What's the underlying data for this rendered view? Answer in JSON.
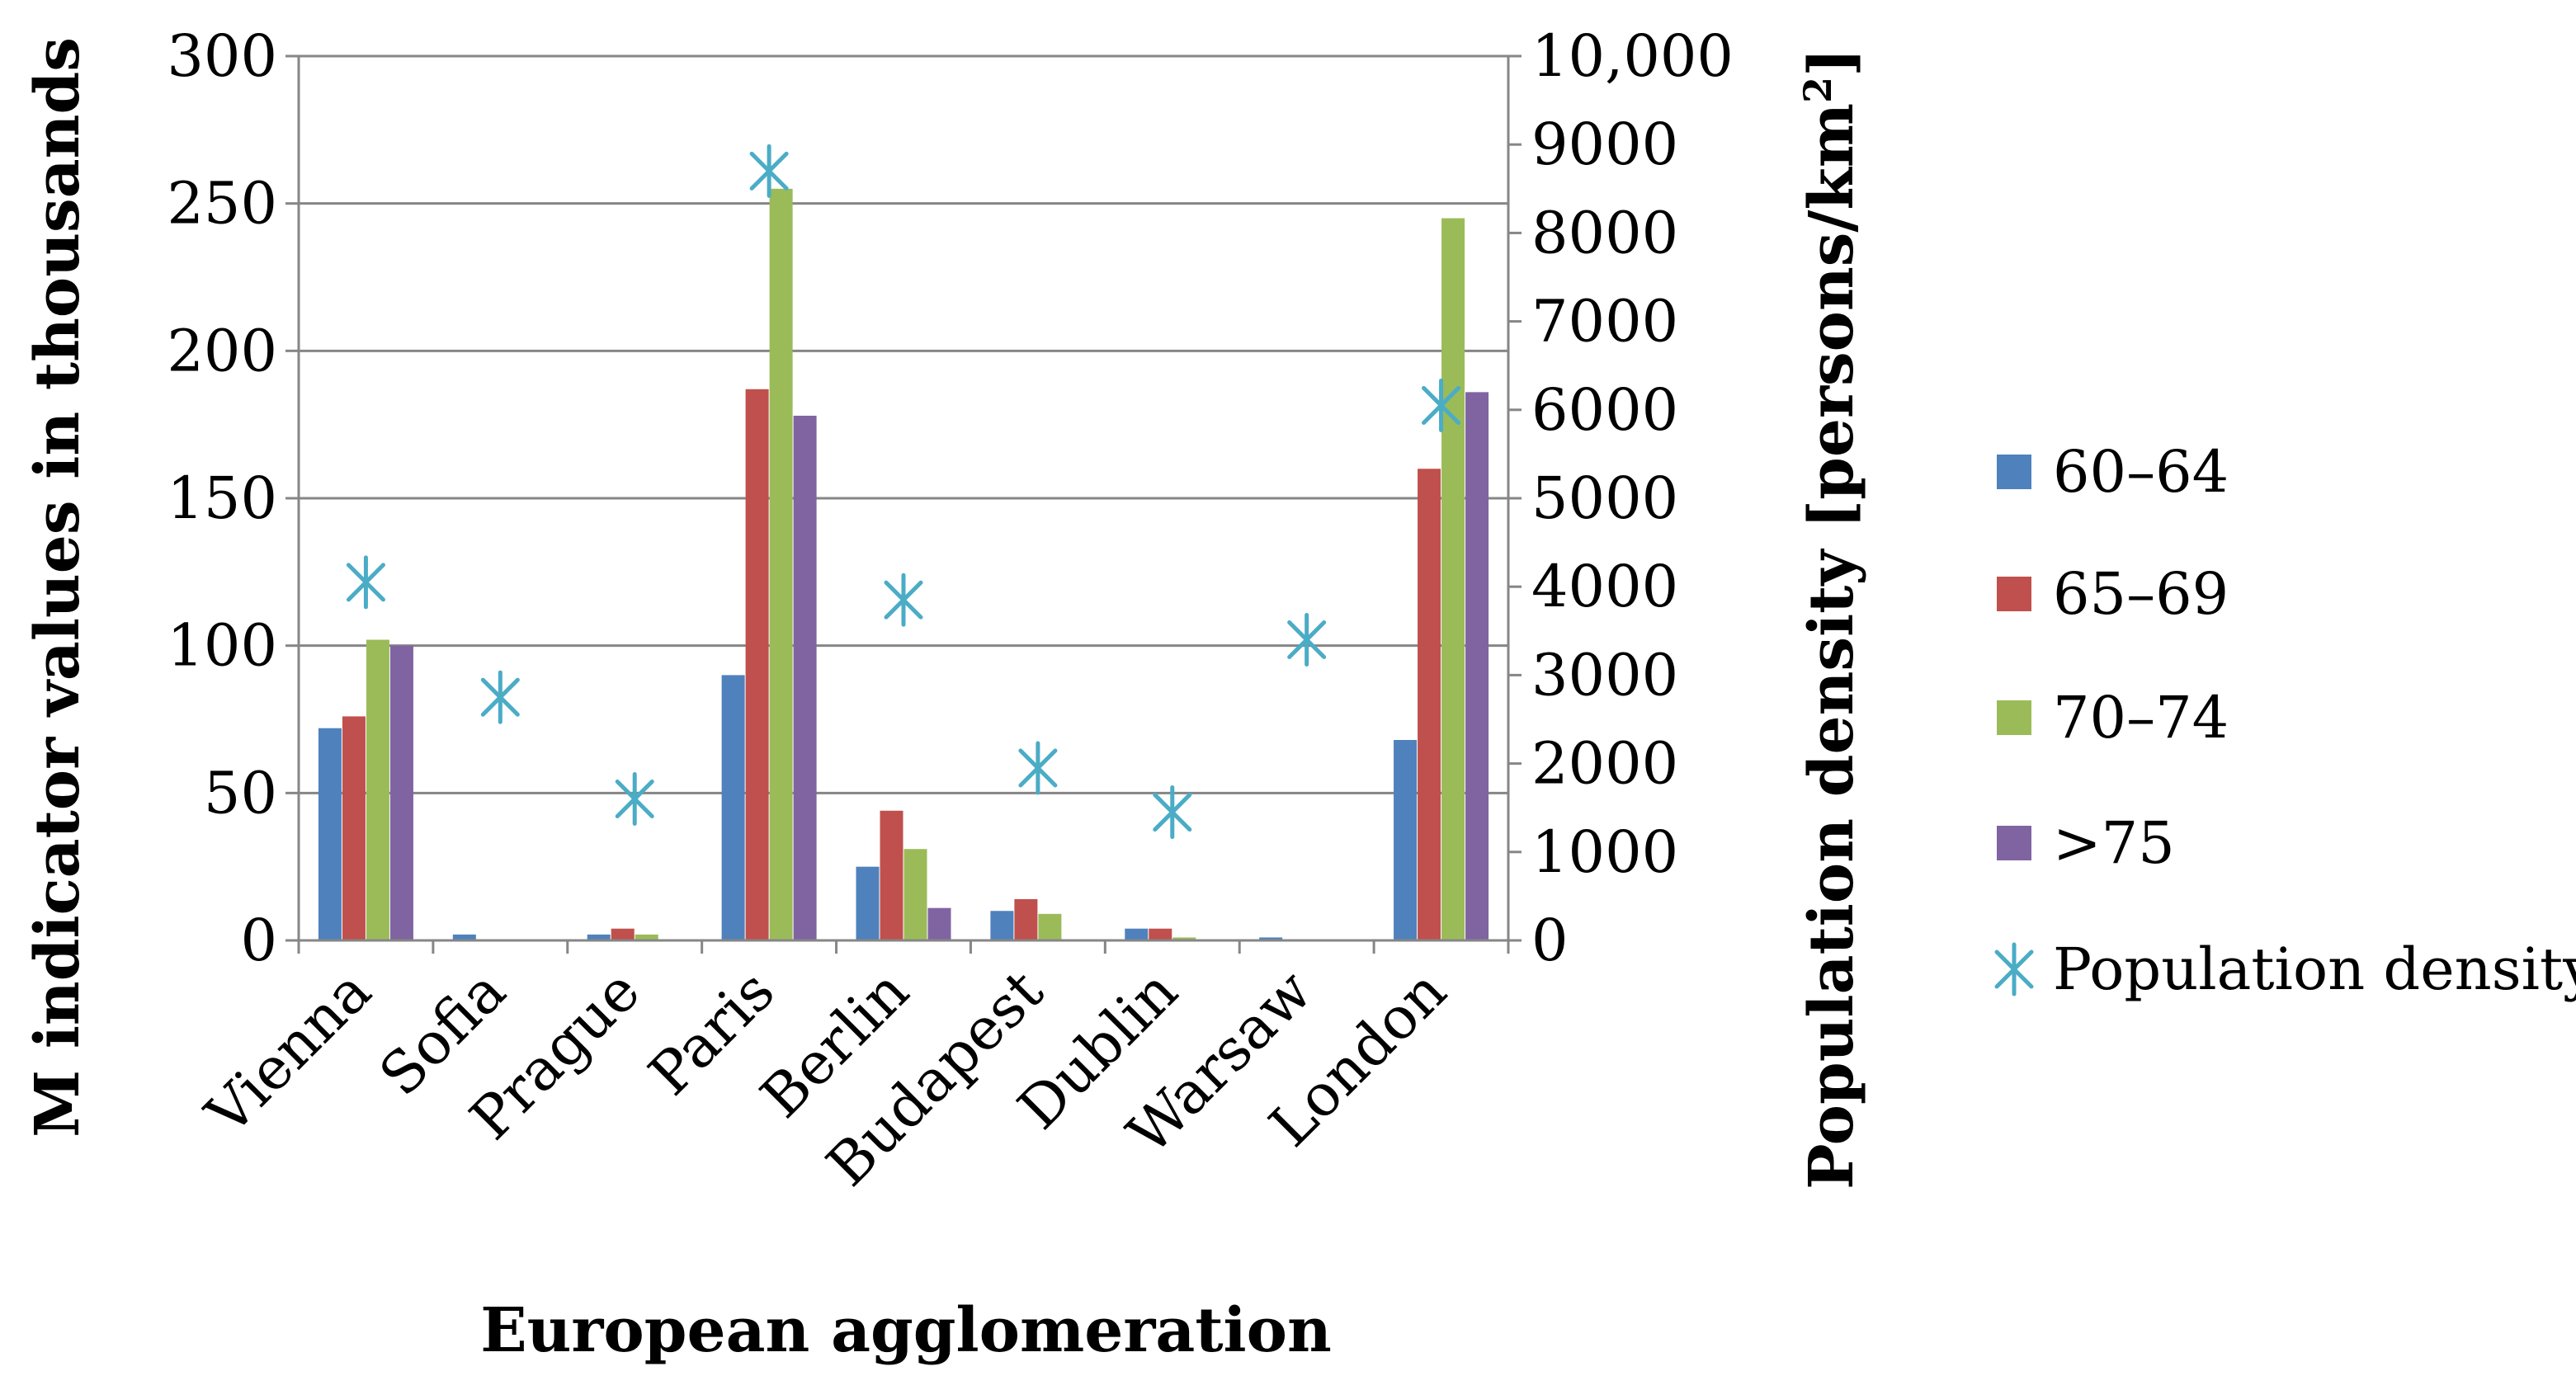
{
  "chart_data": {
    "type": "bar",
    "xlabel": "European agglomeration",
    "ylabel": "M indicator values in thousands",
    "y2label_main": "Population density [persons/km",
    "y2label_sup": "2",
    "y2label_end": "]",
    "categories": [
      "Vienna",
      "Sofia",
      "Prague",
      "Paris",
      "Berlin",
      "Budapest",
      "Dublin",
      "Warsaw",
      "London"
    ],
    "ylim": [
      0,
      300
    ],
    "y_ticks": [
      "0",
      "50",
      "100",
      "150",
      "200",
      "250",
      "300"
    ],
    "y2lim": [
      0,
      10000
    ],
    "y2_ticks": [
      "0",
      "1000",
      "2000",
      "3000",
      "4000",
      "5000",
      "6000",
      "7000",
      "8000",
      "9000",
      "10,000"
    ],
    "grid": true,
    "legend_position": "right",
    "series": [
      {
        "name": "60–64",
        "color": "#4F81BD",
        "values": [
          72,
          2,
          2,
          90,
          25,
          10,
          4,
          1,
          68
        ]
      },
      {
        "name": "65–69",
        "color": "#C0504D",
        "values": [
          76,
          0,
          4,
          187,
          44,
          14,
          4,
          0,
          160
        ]
      },
      {
        "name": "70–74",
        "color": "#9BBB59",
        "values": [
          102,
          0,
          2,
          255,
          31,
          9,
          1,
          0,
          245
        ]
      },
      {
        "name": ">75",
        "color": "#8064A2",
        "values": [
          100,
          0,
          0,
          178,
          11,
          0,
          0,
          0,
          186
        ]
      }
    ],
    "density": {
      "name": "Population density",
      "color": "#4BACC6",
      "axis": "secondary",
      "values": [
        4050,
        2750,
        1600,
        8700,
        3850,
        1950,
        1450,
        3400,
        6050
      ]
    }
  }
}
